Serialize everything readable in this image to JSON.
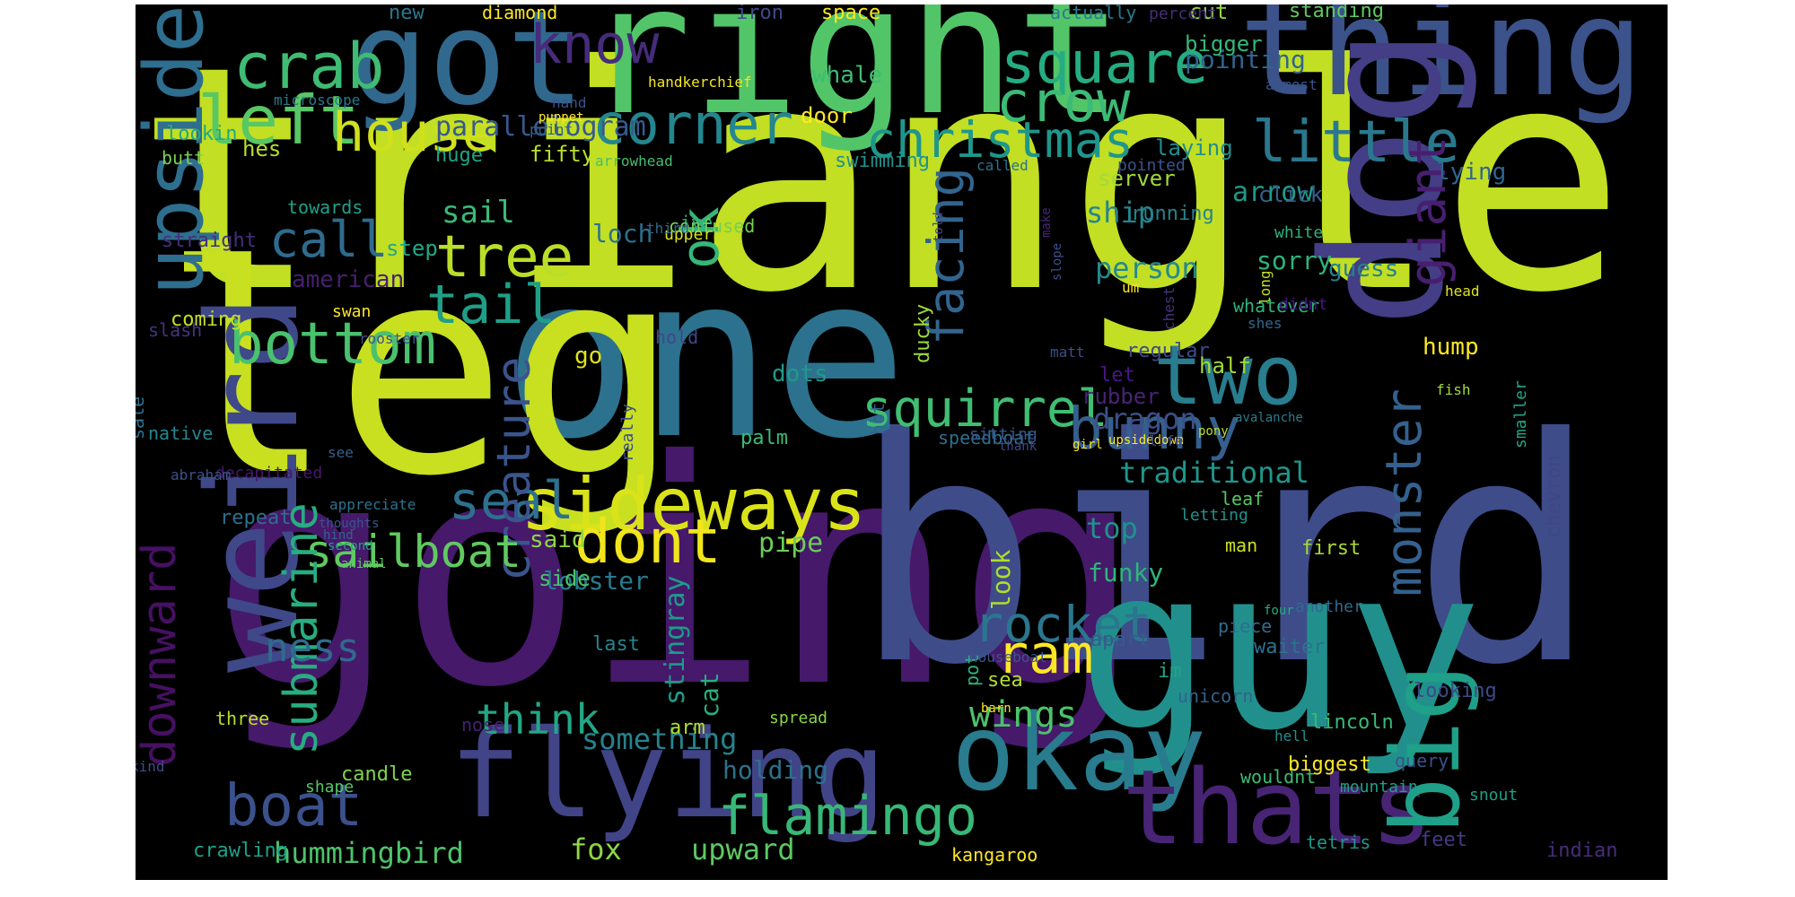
{
  "palette": [
    "#440154",
    "#482878",
    "#3e4a89",
    "#31688e",
    "#26828e",
    "#1f9e89",
    "#35b779",
    "#6ece58",
    "#b5de2b",
    "#fde725"
  ],
  "words": [
    {
      "text": "triangle",
      "color": "#c2df23"
    },
    {
      "text": "going",
      "color": "#46196b"
    },
    {
      "text": "bird",
      "color": "#3e4c8a"
    },
    {
      "text": "one",
      "color": "#2c728e"
    },
    {
      "text": "leg",
      "color": "#c8e020"
    },
    {
      "text": "right",
      "color": "#52c569"
    },
    {
      "text": "guy",
      "color": "#21908d"
    },
    {
      "text": "got",
      "color": "#31688e"
    },
    {
      "text": "thing",
      "color": "#3b528b"
    },
    {
      "text": "dog",
      "color": "#433e85"
    },
    {
      "text": "weird",
      "color": "#3f4889"
    },
    {
      "text": "flying",
      "color": "#414487"
    },
    {
      "text": "okay",
      "color": "#297b8e"
    },
    {
      "text": "thats",
      "color": "#482475"
    },
    {
      "text": "big",
      "color": "#1fa088"
    },
    {
      "text": "upside",
      "color": "#2e6e8e"
    },
    {
      "text": "two",
      "color": "#287d8e"
    },
    {
      "text": "sideways",
      "color": "#dae319"
    },
    {
      "text": "dont",
      "color": "#f1e51d"
    },
    {
      "text": "know",
      "color": "#462c7b"
    },
    {
      "text": "square",
      "color": "#25ac82"
    },
    {
      "text": "crab",
      "color": "#3fbc73"
    },
    {
      "text": "crow",
      "color": "#3bbb75"
    },
    {
      "text": "left",
      "color": "#58c765"
    },
    {
      "text": "corner",
      "color": "#24868e"
    },
    {
      "text": "little",
      "color": "#2a788e"
    },
    {
      "text": "house",
      "color": "#d0e11c"
    },
    {
      "text": "christmas",
      "color": "#1f968b"
    },
    {
      "text": "tree",
      "color": "#bade28"
    },
    {
      "text": "ok",
      "color": "#35b779"
    },
    {
      "text": "tail",
      "color": "#1f9f88"
    },
    {
      "text": "call",
      "color": "#2f6b8e"
    },
    {
      "text": "bottom",
      "color": "#4ac16d"
    },
    {
      "text": "squirrel",
      "color": "#40bd72"
    },
    {
      "text": "bunny",
      "color": "#355f8d"
    },
    {
      "text": "facing",
      "color": "#32658e"
    },
    {
      "text": "giant",
      "color": "#481f70"
    },
    {
      "text": "monster",
      "color": "#34618d"
    },
    {
      "text": "seal",
      "color": "#2d718e"
    },
    {
      "text": "creature",
      "color": "#3a548c"
    },
    {
      "text": "ram",
      "color": "#fde725"
    },
    {
      "text": "rocket",
      "color": "#2a768e"
    },
    {
      "text": "sailboat",
      "color": "#60ca60"
    },
    {
      "text": "submarine",
      "color": "#27ad81"
    },
    {
      "text": "downward",
      "color": "#471063"
    },
    {
      "text": "boat",
      "color": "#3b518b"
    },
    {
      "text": "flamingo",
      "color": "#37b878"
    },
    {
      "text": "wings",
      "color": "#4cc26c"
    },
    {
      "text": "think",
      "color": "#22a785"
    },
    {
      "text": "ness",
      "color": "#306a8e"
    },
    {
      "text": "hummingbird",
      "color": "#4ec36b"
    },
    {
      "text": "fox",
      "color": "#8ed645"
    },
    {
      "text": "upward",
      "color": "#5cc863"
    },
    {
      "text": "something",
      "color": "#25838e"
    },
    {
      "text": "holding",
      "color": "#2c718e"
    },
    {
      "text": "stingray",
      "color": "#1e9b8a"
    },
    {
      "text": "cat",
      "color": "#29af7f"
    },
    {
      "text": "lobster",
      "color": "#297a8e"
    },
    {
      "text": "pipe",
      "color": "#6ccd5a"
    },
    {
      "text": "top",
      "color": "#21918c"
    },
    {
      "text": "look",
      "color": "#b2dd2d"
    },
    {
      "text": "funky",
      "color": "#2fb47c"
    },
    {
      "text": "traditional",
      "color": "#1f968b"
    },
    {
      "text": "dragon",
      "color": "#3c4f8a"
    },
    {
      "text": "person",
      "color": "#23898e"
    },
    {
      "text": "ship",
      "color": "#25848e"
    },
    {
      "text": "arrow",
      "color": "#1f998a"
    },
    {
      "text": "sorry",
      "color": "#2eb37c"
    },
    {
      "text": "guess",
      "color": "#277f8e"
    },
    {
      "text": "lying",
      "color": "#31668e"
    },
    {
      "text": "hump",
      "color": "#fde725"
    },
    {
      "text": "chevron",
      "color": "#404588"
    },
    {
      "text": "parallelogram",
      "color": "#38598c"
    },
    {
      "text": "pointing",
      "color": "#32648e"
    },
    {
      "text": "whale",
      "color": "#3dbc74"
    },
    {
      "text": "door",
      "color": "#fde725"
    },
    {
      "text": "laying",
      "color": "#228d8d"
    },
    {
      "text": "cut",
      "color": "#8fd744"
    },
    {
      "text": "bigger",
      "color": "#35b779"
    },
    {
      "text": "standing",
      "color": "#5ec962"
    },
    {
      "text": "new",
      "color": "#2a788e"
    },
    {
      "text": "diamond",
      "color": "#fde725"
    },
    {
      "text": "iron",
      "color": "#3e4989"
    },
    {
      "text": "space",
      "color": "#fde725"
    },
    {
      "text": "actually",
      "color": "#287c8e"
    },
    {
      "text": "percent",
      "color": "#472d7b"
    },
    {
      "text": "microscope",
      "color": "#2a788e"
    },
    {
      "text": "hand",
      "color": "#3b528b"
    },
    {
      "text": "handkerchief",
      "color": "#f4e61e"
    },
    {
      "text": "almost",
      "color": "#39568c"
    },
    {
      "text": "puppet",
      "color": "#fde725"
    },
    {
      "text": "point",
      "color": "#35608d"
    },
    {
      "text": "lookin",
      "color": "#22a884"
    },
    {
      "text": "hes",
      "color": "#b5de2b"
    },
    {
      "text": "butt",
      "color": "#7ad151"
    },
    {
      "text": "huge",
      "color": "#21a585"
    },
    {
      "text": "fifty",
      "color": "#b8de29"
    },
    {
      "text": "arrowhead",
      "color": "#44bf70"
    },
    {
      "text": "swimming",
      "color": "#21918c"
    },
    {
      "text": "called",
      "color": "#2c728e"
    },
    {
      "text": "pointed",
      "color": "#3a548c"
    },
    {
      "text": "server",
      "color": "#a0da39"
    },
    {
      "text": "running",
      "color": "#26828e"
    },
    {
      "text": "click",
      "color": "#355f8d"
    },
    {
      "text": "white",
      "color": "#2db27d"
    },
    {
      "text": "towards",
      "color": "#1fa088"
    },
    {
      "text": "straight",
      "color": "#472f7d"
    },
    {
      "text": "step",
      "color": "#22a884"
    },
    {
      "text": "sail",
      "color": "#3aba76"
    },
    {
      "text": "loch",
      "color": "#2d708e"
    },
    {
      "text": "upper",
      "color": "#dce319"
    },
    {
      "text": "ive",
      "color": "#27ad81"
    },
    {
      "text": "confused",
      "color": "#75d054"
    },
    {
      "text": "third",
      "color": "#31688e"
    },
    {
      "text": "told",
      "color": "#414487"
    },
    {
      "text": "make",
      "color": "#482677"
    },
    {
      "text": "slope",
      "color": "#3c4f8a"
    },
    {
      "text": "american",
      "color": "#481f70"
    },
    {
      "text": "coming",
      "color": "#c5e021"
    },
    {
      "text": "swan",
      "color": "#fde725"
    },
    {
      "text": "slash",
      "color": "#46337f"
    },
    {
      "text": "rooster",
      "color": "#3b528b"
    },
    {
      "text": "hold",
      "color": "#3f4788"
    },
    {
      "text": "matt",
      "color": "#3d4e8a"
    },
    {
      "text": "regular",
      "color": "#3e4a89"
    },
    {
      "text": "rubber",
      "color": "#482475"
    },
    {
      "text": "whatever",
      "color": "#2fb47c"
    },
    {
      "text": "half",
      "color": "#a8db34"
    },
    {
      "text": "long",
      "color": "#c0df25"
    },
    {
      "text": "didnt",
      "color": "#4a1486"
    },
    {
      "text": "head",
      "color": "#e2e418"
    },
    {
      "text": "shes",
      "color": "#31688e"
    },
    {
      "text": "chest",
      "color": "#46337f"
    },
    {
      "text": "um",
      "color": "#fde725"
    },
    {
      "text": "go",
      "color": "#dde318"
    },
    {
      "text": "dots",
      "color": "#1f998a"
    },
    {
      "text": "ducky",
      "color": "#9fda3a"
    },
    {
      "text": "let",
      "color": "#4a1486"
    },
    {
      "text": "fish",
      "color": "#a2da37"
    },
    {
      "text": "sale",
      "color": "#2c728e"
    },
    {
      "text": "native",
      "color": "#24868e"
    },
    {
      "text": "decapitated",
      "color": "#481769"
    },
    {
      "text": "abraham",
      "color": "#3b528b"
    },
    {
      "text": "see",
      "color": "#35608d"
    },
    {
      "text": "thoughts",
      "color": "#3a548c"
    },
    {
      "text": "appreciate",
      "color": "#2c728e"
    },
    {
      "text": "hind",
      "color": "#33638d"
    },
    {
      "text": "second",
      "color": "#1f9e89"
    },
    {
      "text": "animal",
      "color": "#5ec962"
    },
    {
      "text": "repeat",
      "color": "#2e6f8e"
    },
    {
      "text": "said",
      "color": "#8fd744"
    },
    {
      "text": "side",
      "color": "#4ac16d"
    },
    {
      "text": "last",
      "color": "#26828e"
    },
    {
      "text": "really",
      "color": "#3d4d8a"
    },
    {
      "text": "palm",
      "color": "#3bbb75"
    },
    {
      "text": "hot",
      "color": "#33628d"
    },
    {
      "text": "speedboat",
      "color": "#2e6e8e"
    },
    {
      "text": "sitting",
      "color": "#3a548c"
    },
    {
      "text": "thank",
      "color": "#3f4788"
    },
    {
      "text": "girl",
      "color": "#fde725"
    },
    {
      "text": "upsidedown",
      "color": "#fde725"
    },
    {
      "text": "life",
      "color": "#3e4989"
    },
    {
      "text": "pony",
      "color": "#b8de29"
    },
    {
      "text": "avalanche",
      "color": "#297b8e"
    },
    {
      "text": "smaller",
      "color": "#21a585"
    },
    {
      "text": "leaf",
      "color": "#55c667"
    },
    {
      "text": "letting",
      "color": "#21918c"
    },
    {
      "text": "man",
      "color": "#cae11f"
    },
    {
      "text": "first",
      "color": "#a8db34"
    },
    {
      "text": "another",
      "color": "#31688e"
    },
    {
      "text": "four",
      "color": "#25ab82"
    },
    {
      "text": "apart",
      "color": "#38598c"
    },
    {
      "text": "pot",
      "color": "#2db27d"
    },
    {
      "text": "sea",
      "color": "#b5de2b"
    },
    {
      "text": "im",
      "color": "#20a486"
    },
    {
      "text": "piece",
      "color": "#2f6c8e"
    },
    {
      "text": "waiter",
      "color": "#2c728e"
    },
    {
      "text": "lincoln",
      "color": "#3aba76"
    },
    {
      "text": "houseboat",
      "color": "#39568c"
    },
    {
      "text": "barn",
      "color": "#fde725"
    },
    {
      "text": "spread",
      "color": "#89d548"
    },
    {
      "text": "unicorn",
      "color": "#33638d"
    },
    {
      "text": "hell",
      "color": "#21918c"
    },
    {
      "text": "wouldnt",
      "color": "#3dbc74"
    },
    {
      "text": "biggest",
      "color": "#fde725"
    },
    {
      "text": "query",
      "color": "#3b528b"
    },
    {
      "text": "looking",
      "color": "#3e4989"
    },
    {
      "text": "mountain",
      "color": "#1fa188"
    },
    {
      "text": "three",
      "color": "#b8de29"
    },
    {
      "text": "kind",
      "color": "#3e4c8a"
    },
    {
      "text": "nose",
      "color": "#481f70"
    },
    {
      "text": "arm",
      "color": "#b5de2b"
    },
    {
      "text": "candle",
      "color": "#7fd34e"
    },
    {
      "text": "shape",
      "color": "#55c667"
    },
    {
      "text": "snout",
      "color": "#1f9e89"
    },
    {
      "text": "crawling",
      "color": "#1fa088"
    },
    {
      "text": "kangaroo",
      "color": "#fde725"
    },
    {
      "text": "tetris",
      "color": "#1f968b"
    },
    {
      "text": "feet",
      "color": "#443983"
    },
    {
      "text": "indian",
      "color": "#472d7b"
    }
  ]
}
